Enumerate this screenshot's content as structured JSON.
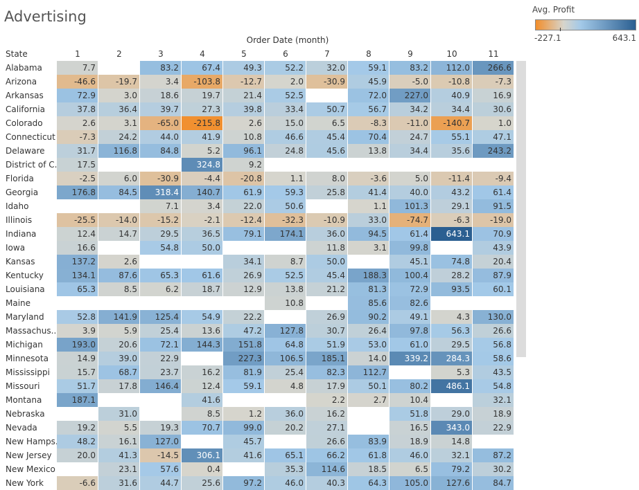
{
  "title": "Advertising",
  "legend": {
    "title": "Avg. Profit",
    "min_label": "-227.1",
    "max_label": "643.1",
    "min": -227.1,
    "max": 643.1,
    "colors": {
      "negative": "#f28e2b",
      "neutral": "#d7d5cc",
      "positive_low": "#a3c9e8",
      "positive_high": "#2b5f91"
    }
  },
  "chart_data": {
    "type": "heatmap",
    "title": "Advertising",
    "xlabel": "Order Date (month)",
    "ylabel": "State",
    "categories": [
      "1",
      "2",
      "3",
      "4",
      "5",
      "6",
      "7",
      "8",
      "9",
      "10",
      "11"
    ],
    "rows": [
      {
        "state": "Alabama",
        "values": [
          7.7,
          null,
          83.2,
          67.4,
          49.3,
          52.2,
          32.0,
          59.1,
          83.2,
          112.0,
          266.6
        ]
      },
      {
        "state": "Arizona",
        "values": [
          -46.6,
          -19.7,
          3.4,
          -103.8,
          -12.7,
          2.0,
          -30.9,
          45.9,
          -5.0,
          -10.8,
          -7.3
        ]
      },
      {
        "state": "Arkansas",
        "values": [
          72.9,
          3.0,
          18.6,
          19.7,
          21.4,
          52.5,
          null,
          72.0,
          227.0,
          40.9,
          16.9
        ]
      },
      {
        "state": "California",
        "values": [
          37.8,
          36.4,
          39.7,
          27.3,
          39.8,
          33.4,
          50.7,
          56.7,
          34.2,
          34.4,
          30.6
        ]
      },
      {
        "state": "Colorado",
        "values": [
          2.6,
          3.1,
          -65.0,
          -215.8,
          2.6,
          15.0,
          6.5,
          -8.3,
          -11.0,
          -140.7,
          1.0
        ]
      },
      {
        "state": "Connecticut",
        "values": [
          -7.3,
          24.2,
          44.0,
          41.9,
          10.8,
          46.6,
          45.4,
          70.4,
          24.7,
          55.1,
          47.1
        ]
      },
      {
        "state": "Delaware",
        "values": [
          31.7,
          116.8,
          84.8,
          5.2,
          96.1,
          24.8,
          45.6,
          13.8,
          34.4,
          35.6,
          243.2
        ]
      },
      {
        "state": "District of C..",
        "values": [
          17.5,
          null,
          null,
          324.8,
          9.2,
          null,
          null,
          null,
          null,
          null,
          null
        ]
      },
      {
        "state": "Florida",
        "values": [
          -2.5,
          6.0,
          -30.9,
          -4.4,
          -20.8,
          1.1,
          8.0,
          -3.6,
          5.0,
          -11.4,
          -9.4
        ]
      },
      {
        "state": "Georgia",
        "values": [
          176.8,
          84.5,
          318.4,
          140.7,
          61.9,
          59.3,
          25.8,
          41.4,
          40.0,
          43.2,
          61.4
        ]
      },
      {
        "state": "Idaho",
        "values": [
          null,
          null,
          7.1,
          3.4,
          22.0,
          50.6,
          null,
          1.1,
          101.3,
          29.1,
          91.5
        ]
      },
      {
        "state": "Illinois",
        "values": [
          -25.5,
          -14.0,
          -15.2,
          -2.1,
          -12.4,
          -32.3,
          -10.9,
          33.0,
          -74.7,
          -6.3,
          -19.0
        ]
      },
      {
        "state": "Indiana",
        "values": [
          12.4,
          14.7,
          29.5,
          36.5,
          79.1,
          174.1,
          36.0,
          94.5,
          61.4,
          643.1,
          70.9
        ]
      },
      {
        "state": "Iowa",
        "values": [
          16.6,
          null,
          54.8,
          50.0,
          null,
          null,
          11.8,
          3.1,
          99.8,
          null,
          43.9
        ]
      },
      {
        "state": "Kansas",
        "values": [
          137.2,
          2.6,
          null,
          null,
          34.1,
          8.7,
          50.0,
          null,
          45.1,
          74.8,
          20.4
        ]
      },
      {
        "state": "Kentucky",
        "values": [
          134.1,
          87.6,
          65.3,
          61.6,
          26.9,
          52.5,
          45.4,
          188.3,
          100.4,
          28.2,
          87.9
        ]
      },
      {
        "state": "Louisiana",
        "values": [
          65.3,
          8.5,
          6.2,
          18.7,
          12.9,
          13.8,
          21.2,
          81.3,
          72.9,
          93.5,
          60.1
        ]
      },
      {
        "state": "Maine",
        "values": [
          null,
          null,
          null,
          null,
          null,
          10.8,
          null,
          85.6,
          82.6,
          null,
          null
        ]
      },
      {
        "state": "Maryland",
        "values": [
          52.8,
          141.9,
          125.4,
          54.9,
          22.2,
          null,
          26.9,
          90.2,
          49.1,
          4.3,
          130.0
        ]
      },
      {
        "state": "Massachus..",
        "values": [
          3.9,
          5.9,
          25.4,
          13.6,
          47.2,
          127.8,
          30.7,
          26.4,
          97.8,
          56.3,
          26.6
        ]
      },
      {
        "state": "Michigan",
        "values": [
          193.0,
          20.6,
          72.1,
          144.3,
          151.8,
          64.8,
          51.9,
          53.0,
          61.0,
          29.5,
          56.8
        ]
      },
      {
        "state": "Minnesota",
        "values": [
          14.9,
          39.0,
          22.9,
          null,
          227.3,
          106.5,
          185.1,
          14.0,
          339.2,
          284.3,
          58.6
        ]
      },
      {
        "state": "Mississippi",
        "values": [
          15.7,
          68.7,
          23.7,
          16.2,
          81.9,
          25.4,
          82.3,
          112.7,
          null,
          5.3,
          43.5
        ]
      },
      {
        "state": "Missouri",
        "values": [
          51.7,
          17.8,
          146.4,
          12.4,
          59.1,
          4.8,
          17.9,
          50.1,
          80.2,
          486.1,
          54.8
        ]
      },
      {
        "state": "Montana",
        "values": [
          187.1,
          null,
          null,
          41.6,
          null,
          null,
          2.2,
          2.7,
          10.4,
          null,
          32.1
        ]
      },
      {
        "state": "Nebraska",
        "values": [
          null,
          31.0,
          null,
          8.5,
          1.2,
          36.0,
          16.2,
          null,
          51.8,
          29.0,
          18.9
        ]
      },
      {
        "state": "Nevada",
        "values": [
          19.2,
          5.5,
          19.3,
          70.7,
          99.0,
          20.2,
          27.1,
          null,
          16.5,
          343.0,
          22.9
        ]
      },
      {
        "state": "New Hamps..",
        "values": [
          48.2,
          16.1,
          127.0,
          null,
          45.7,
          null,
          26.6,
          83.9,
          18.9,
          14.8,
          null
        ]
      },
      {
        "state": "New Jersey",
        "values": [
          20.0,
          41.3,
          -14.5,
          306.1,
          41.6,
          65.1,
          66.2,
          61.8,
          46.0,
          32.1,
          87.2
        ]
      },
      {
        "state": "New Mexico",
        "values": [
          null,
          23.1,
          57.6,
          0.4,
          null,
          35.3,
          114.6,
          18.5,
          6.5,
          79.2,
          30.2
        ]
      },
      {
        "state": "New York",
        "values": [
          -6.6,
          31.6,
          44.7,
          25.6,
          97.2,
          46.0,
          40.3,
          64.3,
          105.0,
          127.6,
          84.7
        ]
      }
    ]
  }
}
